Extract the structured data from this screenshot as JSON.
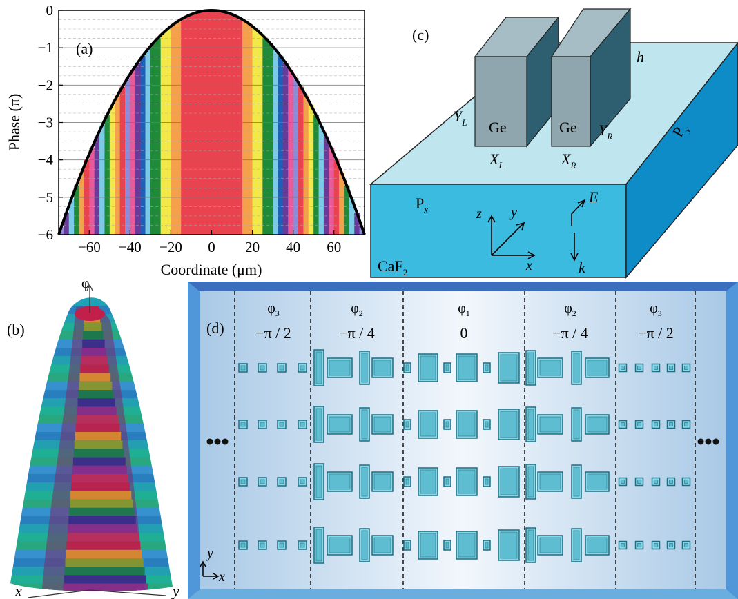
{
  "panel_a": {
    "label": "(a)",
    "xlabel": "Coordinate (μm)",
    "ylabel": "Phase (π)",
    "chart_data": {
      "type": "line",
      "xlabel": "Coordinate (μm)",
      "ylabel": "Phase (π)",
      "xlim": [
        -75,
        75
      ],
      "ylim": [
        -6,
        0
      ],
      "xticks": [
        -60,
        -40,
        -20,
        0,
        20,
        40,
        60
      ],
      "yticks": [
        0,
        -1,
        -2,
        -3,
        -4,
        -5,
        -6
      ],
      "series": [
        {
          "x": [
            -75,
            -60,
            -45,
            -30,
            -15,
            0,
            15,
            30,
            45,
            60,
            75
          ],
          "y": [
            -6,
            -3.84,
            -2.16,
            -0.96,
            -0.24,
            0,
            -0.24,
            -0.96,
            -2.16,
            -3.84,
            -6
          ]
        }
      ],
      "grid": true,
      "band_colors": [
        "#e8434f",
        "#f5a04a",
        "#f2e84a",
        "#1e8a3a",
        "#7acbe8",
        "#1f5fb8",
        "#6a3a9a",
        "#ea5a9a",
        "#8e8ad8"
      ]
    }
  },
  "panel_b": {
    "label": "(b)",
    "axis_phi": "φ",
    "axis_x": "x",
    "axis_y": "y"
  },
  "panel_c": {
    "label": "(c)",
    "h": "h",
    "ge_left": "Ge",
    "ge_right": "Ge",
    "yl": "Y",
    "yl_sub": "L",
    "yr": "Y",
    "yr_sub": "R",
    "xl": "X",
    "xl_sub": "L",
    "xr": "X",
    "xr_sub": "R",
    "py": "P",
    "py_sub": "y",
    "px": "P",
    "px_sub": "x",
    "caf2": "CaF",
    "caf2_sub": "2",
    "axis_x": "x",
    "axis_y": "y",
    "axis_z": "z",
    "e": "E",
    "k": "k"
  },
  "panel_d": {
    "label": "(d)",
    "sections": [
      {
        "phi": "φ",
        "sub": "3",
        "value": "−π / 2"
      },
      {
        "phi": "φ",
        "sub": "2",
        "value": "−π / 4"
      },
      {
        "phi": "φ",
        "sub": "1",
        "value": "0"
      },
      {
        "phi": "φ",
        "sub": "2",
        "value": "−π / 4"
      },
      {
        "phi": "φ",
        "sub": "3",
        "value": "−π / 2"
      }
    ],
    "axis_x": "x",
    "axis_y": "y"
  }
}
